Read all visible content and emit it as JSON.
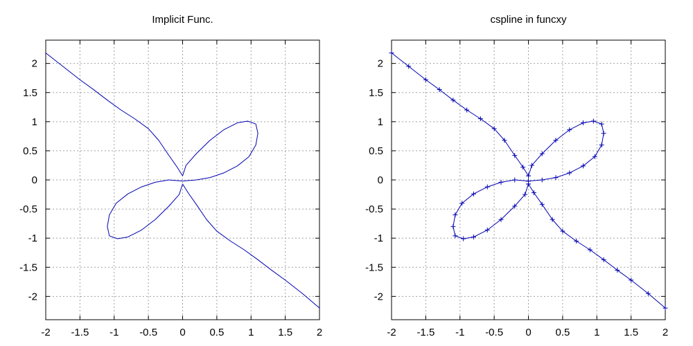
{
  "chart_data": [
    {
      "type": "line",
      "title": "Implicit Func.",
      "xlim": [
        -2,
        2
      ],
      "ylim": [
        -2.4,
        2.4
      ],
      "xticks": [
        -2,
        -1.5,
        -1,
        -0.5,
        0,
        0.5,
        1,
        1.5,
        2
      ],
      "xtick_labels": [
        "-2",
        "-1.5",
        "-1",
        "-0.5",
        "0",
        "0.5",
        "1",
        "1.5",
        "2"
      ],
      "yticks": [
        2,
        1.5,
        1,
        0.5,
        0,
        -0.5,
        -1,
        -1.5,
        -2
      ],
      "ytick_labels": [
        "2",
        "1.5",
        "1",
        "0.5",
        "0",
        "-0.5",
        "-1",
        "-1.5",
        "-2"
      ],
      "grid": true,
      "markers": false,
      "color": "#0000b0"
    },
    {
      "type": "line",
      "title": "cspline in funcxy",
      "xlim": [
        -2,
        2
      ],
      "ylim": [
        -2.4,
        2.4
      ],
      "xticks": [
        -2,
        -1.5,
        -1,
        -0.5,
        0,
        0.5,
        1,
        1.5,
        2
      ],
      "xtick_labels": [
        "-2",
        "-1.5",
        "-1",
        "-0.5",
        "0",
        "0.5",
        "1",
        "1.5",
        "2"
      ],
      "yticks": [
        2,
        1.5,
        1,
        0.5,
        0,
        -0.5,
        -1,
        -1.5,
        -2
      ],
      "ytick_labels": [
        "2",
        "1.5",
        "1",
        "0.5",
        "0",
        "-0.5",
        "-1",
        "-1.5",
        "-2"
      ],
      "grid": true,
      "markers": true,
      "marker": "+",
      "color": "#0000b0"
    }
  ],
  "curve": {
    "note_series": [
      {
        "segment": "upper-left arm into top petal",
        "points": [
          [
            -2,
            2.18
          ],
          [
            -1.75,
            1.95
          ],
          [
            -1.5,
            1.72
          ],
          [
            -1.3,
            1.55
          ],
          [
            -1.1,
            1.37
          ],
          [
            -0.9,
            1.2
          ],
          [
            -0.7,
            1.05
          ],
          [
            -0.5,
            0.88
          ],
          [
            -0.35,
            0.68
          ],
          [
            -0.2,
            0.42
          ],
          [
            -0.08,
            0.22
          ],
          [
            0.0,
            0.07
          ]
        ]
      },
      {
        "segment": "top-right petal",
        "points": [
          [
            0.0,
            0.07
          ],
          [
            0.05,
            0.25
          ],
          [
            0.2,
            0.45
          ],
          [
            0.4,
            0.68
          ],
          [
            0.6,
            0.86
          ],
          [
            0.8,
            0.98
          ],
          [
            0.95,
            1.01
          ],
          [
            1.07,
            0.96
          ],
          [
            1.1,
            0.8
          ],
          [
            1.07,
            0.6
          ],
          [
            0.97,
            0.4
          ],
          [
            0.8,
            0.24
          ],
          [
            0.6,
            0.12
          ],
          [
            0.4,
            0.04
          ],
          [
            0.2,
            0.0
          ],
          [
            0.0,
            -0.02
          ]
        ]
      },
      {
        "segment": "bottom-left petal",
        "points": [
          [
            0.0,
            -0.02
          ],
          [
            -0.2,
            0.0
          ],
          [
            -0.4,
            -0.04
          ],
          [
            -0.6,
            -0.12
          ],
          [
            -0.8,
            -0.24
          ],
          [
            -0.97,
            -0.4
          ],
          [
            -1.07,
            -0.6
          ],
          [
            -1.1,
            -0.8
          ],
          [
            -1.07,
            -0.96
          ],
          [
            -0.95,
            -1.01
          ],
          [
            -0.8,
            -0.98
          ],
          [
            -0.6,
            -0.86
          ],
          [
            -0.4,
            -0.68
          ],
          [
            -0.2,
            -0.45
          ],
          [
            -0.05,
            -0.25
          ],
          [
            0.0,
            -0.07
          ]
        ]
      },
      {
        "segment": "lower-right arm",
        "points": [
          [
            0.0,
            -0.07
          ],
          [
            0.08,
            -0.22
          ],
          [
            0.2,
            -0.42
          ],
          [
            0.35,
            -0.68
          ],
          [
            0.5,
            -0.88
          ],
          [
            0.7,
            -1.05
          ],
          [
            0.9,
            -1.2
          ],
          [
            1.1,
            -1.37
          ],
          [
            1.3,
            -1.55
          ],
          [
            1.5,
            -1.72
          ],
          [
            1.75,
            -1.95
          ],
          [
            2,
            -2.2
          ]
        ]
      }
    ]
  }
}
